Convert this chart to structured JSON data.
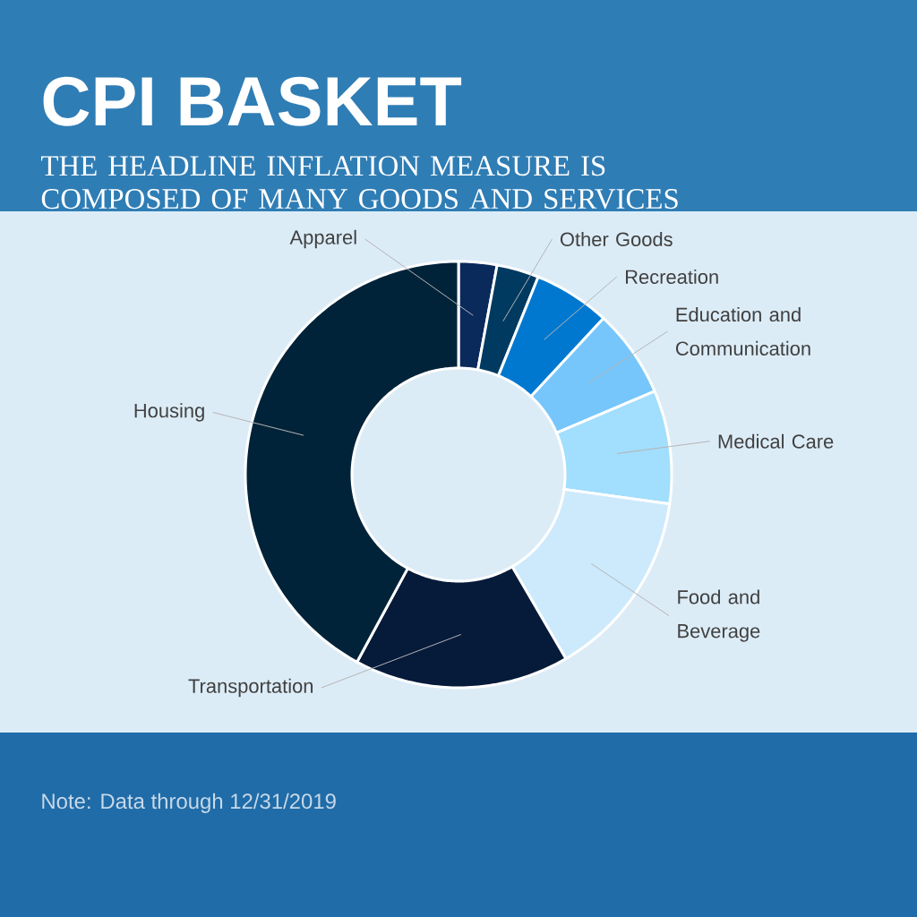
{
  "chart_data": {
    "type": "donut",
    "title": "CPI BASKET",
    "subtitle": "THE HEADLINE INFLATION MEASURE IS COMPOSED OF MANY GOODS AND SERVICES",
    "categories": [
      "Apparel",
      "Other Goods",
      "Recreation",
      "Education and Communication",
      "Medical Care",
      "Food and Beverage",
      "Transportation",
      "Housing"
    ],
    "values": [
      2.9,
      3.2,
      5.8,
      6.7,
      8.6,
      14.4,
      16.3,
      42.1
    ],
    "colors": [
      "#0a2a5c",
      "#003a60",
      "#0078d0",
      "#76c6fc",
      "#a2defd",
      "#cdeafd",
      "#061a3a",
      "#012339"
    ],
    "annotations": [
      "Note:  Data through 12/31/2019"
    ]
  }
}
